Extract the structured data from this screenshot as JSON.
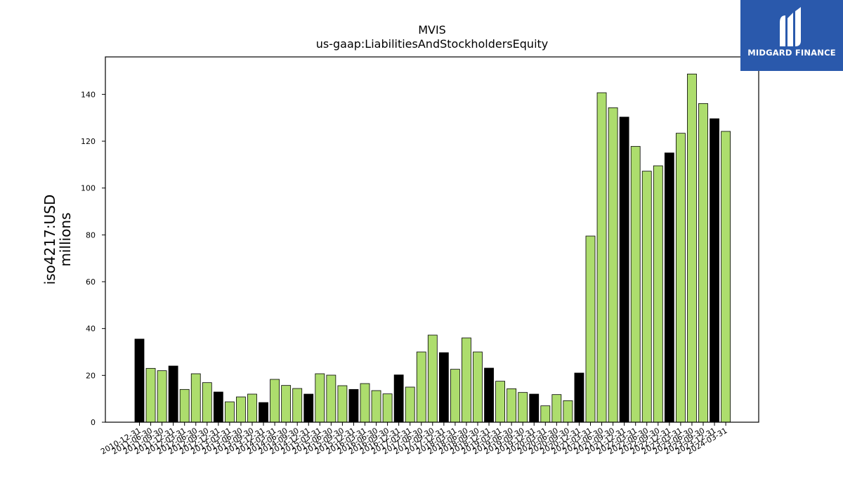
{
  "chart_data": {
    "type": "bar",
    "title": "MVIS",
    "subtitle": "us-gaap:LiabilitiesAndStockholdersEquity",
    "ylabel": "iso4217:USD",
    "ylabel2": "millions",
    "xlabel": "",
    "ylim": [
      0,
      156
    ],
    "yticks": [
      "0",
      "20",
      "40",
      "60",
      "80",
      "100",
      "120",
      "140"
    ],
    "colors": {
      "quarter": "#addd6d",
      "year_end": "#000000",
      "edge": "#000000"
    },
    "categories": [
      "2010-12-31",
      "2011-06-30",
      "2011-09-30",
      "2011-12-31",
      "2012-03-31",
      "2012-06-30",
      "2012-09-30",
      "2012-12-31",
      "2013-03-31",
      "2013-06-30",
      "2013-09-30",
      "2013-12-31",
      "2014-03-31",
      "2014-06-30",
      "2014-09-30",
      "2014-12-31",
      "2015-03-31",
      "2015-06-30",
      "2015-09-30",
      "2015-12-31",
      "2016-03-31",
      "2016-06-30",
      "2016-09-30",
      "2016-12-31",
      "2017-03-31",
      "2017-06-30",
      "2017-09-30",
      "2017-12-31",
      "2018-03-31",
      "2018-06-30",
      "2018-09-30",
      "2018-12-31",
      "2019-03-31",
      "2019-06-30",
      "2019-09-30",
      "2019-12-31",
      "2020-03-31",
      "2020-06-30",
      "2020-09-30",
      "2020-12-31",
      "2021-03-31",
      "2021-06-30",
      "2021-09-30",
      "2021-12-31",
      "2022-03-31",
      "2022-06-30",
      "2022-09-30",
      "2022-12-31",
      "2023-03-31",
      "2023-06-30",
      "2023-09-30",
      "2023-12-31",
      "2024-03-31"
    ],
    "values": [
      35.5,
      23,
      22,
      24,
      14,
      20.7,
      16.9,
      12.9,
      8.7,
      10.8,
      12,
      8.4,
      18.3,
      15.7,
      14.4,
      12,
      20.7,
      20.1,
      15.6,
      14,
      16.5,
      13.5,
      12.1,
      20.2,
      15,
      30,
      37.2,
      29.7,
      22.6,
      36,
      30,
      23.1,
      17.5,
      14.3,
      12.7,
      12,
      7,
      11.8,
      9.2,
      21,
      79.5,
      140.7,
      134.3,
      130.3,
      117.8,
      107.2,
      109.5,
      115,
      123.4,
      148.7,
      136.1,
      129.6,
      124.2
    ]
  },
  "logo": {
    "text": "MIDGARD FINANCE"
  }
}
